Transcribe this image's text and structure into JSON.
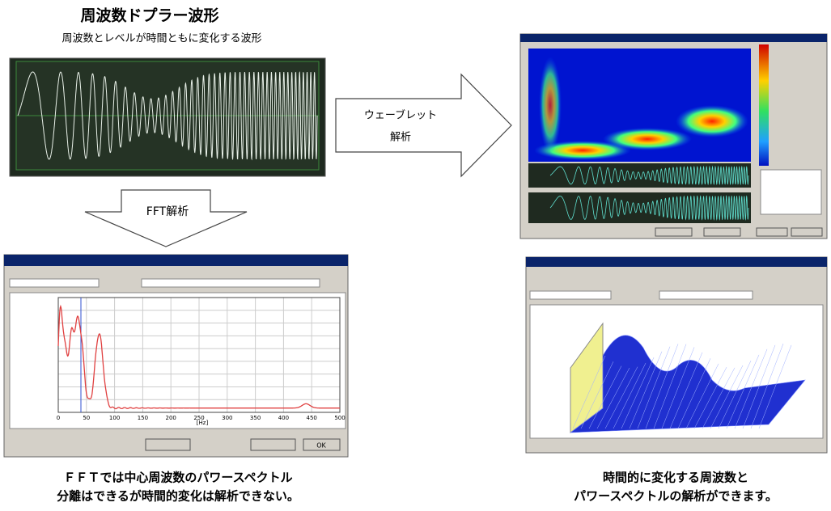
{
  "header": {
    "title": "周波数ドプラー波形",
    "subtitle": "周波数とレベルが時間ともに変化する波形"
  },
  "arrows": {
    "wavelet": [
      "ウェーブレット",
      "解析"
    ],
    "fft": "FFT解析"
  },
  "fft_window": {
    "x_ticks": [
      "0",
      "50",
      "100",
      "150",
      "200",
      "250",
      "300",
      "350",
      "400",
      "450",
      "500"
    ],
    "x_unit": "[Hz]",
    "ok_button": "OK"
  },
  "captions": {
    "left": [
      "ＦＦＴでは中心周波数のパワースペクトル",
      "分離はできるが時間的変化は解析できない。"
    ],
    "right": [
      "時間的に変化する周波数と",
      "パワースペクトルの解析ができます。"
    ]
  }
}
